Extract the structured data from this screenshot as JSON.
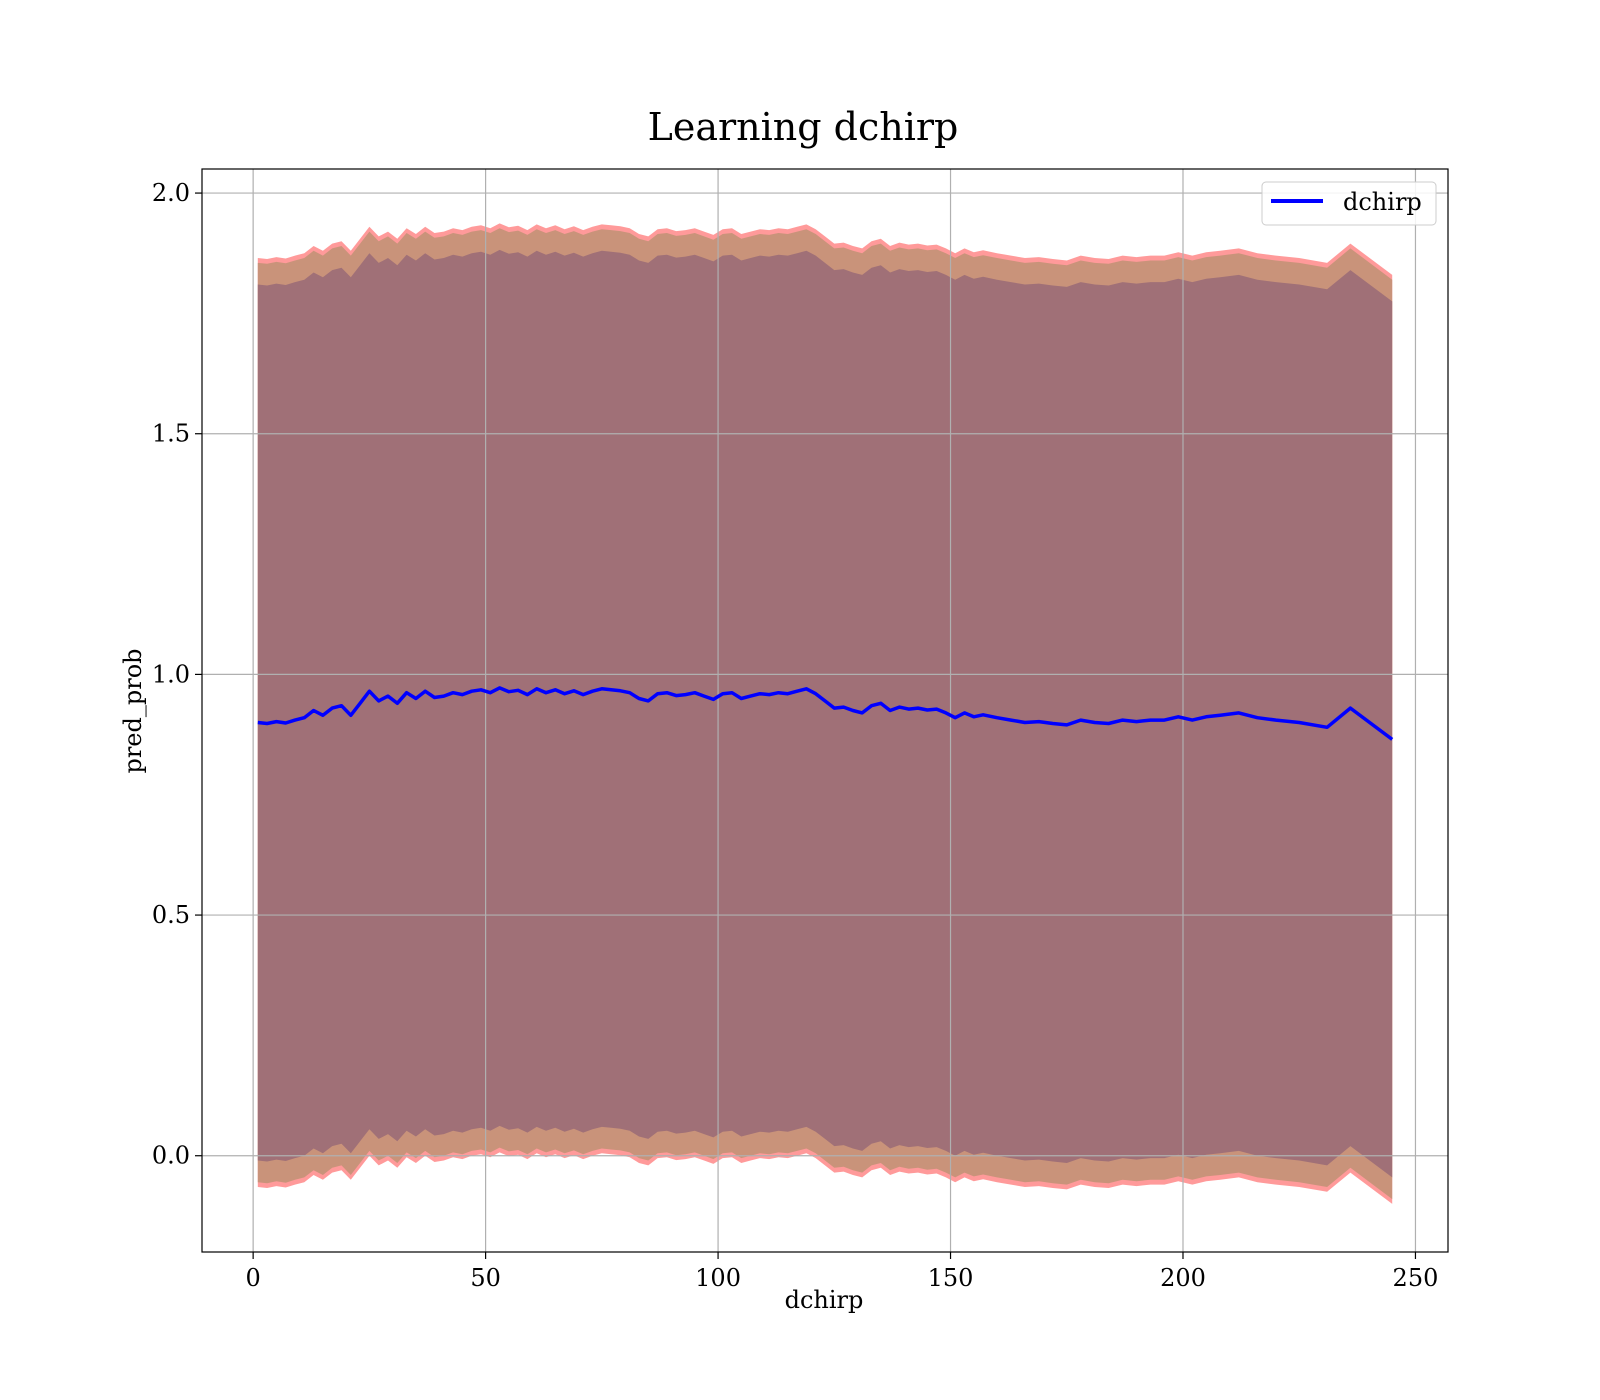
{
  "chart_data": {
    "type": "line",
    "title": "Learning dchirp",
    "xlabel": "dchirp",
    "ylabel": "pred_prob",
    "xlim": [
      -11,
      257
    ],
    "ylim": [
      -0.2,
      2.05
    ],
    "xticks": [
      0,
      50,
      100,
      150,
      200,
      250
    ],
    "xtick_labels": [
      "0",
      "50",
      "100",
      "150",
      "200",
      "250"
    ],
    "yticks": [
      0.0,
      0.5,
      1.0,
      1.5,
      2.0
    ],
    "ytick_labels": [
      "0.0",
      "0.5",
      "1.0",
      "1.5",
      "2.0"
    ],
    "grid": true,
    "legend": {
      "placement": "top-right",
      "entries": [
        "dchirp"
      ]
    },
    "colors": {
      "line": "#0000ff",
      "band_outer": "#ff9a9a",
      "band_middle": "#c9937a",
      "band_inner": "#a07077",
      "grid": "#b0b0b0"
    },
    "series": [
      {
        "name": "dchirp",
        "x": [
          1,
          3,
          5,
          7,
          9,
          11,
          13,
          15,
          17,
          19,
          21,
          23,
          25,
          27,
          29,
          31,
          33,
          35,
          37,
          39,
          41,
          43,
          45,
          47,
          49,
          51,
          53,
          55,
          57,
          59,
          61,
          63,
          65,
          67,
          69,
          71,
          73,
          75,
          77,
          79,
          81,
          83,
          85,
          87,
          89,
          91,
          93,
          95,
          97,
          99,
          101,
          103,
          105,
          107,
          109,
          111,
          113,
          115,
          117,
          119,
          121,
          123,
          125,
          127,
          129,
          131,
          133,
          135,
          137,
          139,
          141,
          143,
          145,
          147,
          149,
          151,
          153,
          155,
          157,
          160,
          163,
          166,
          169,
          172,
          175,
          178,
          181,
          184,
          187,
          190,
          193,
          196,
          199,
          202,
          205,
          208,
          212,
          216,
          220,
          225,
          231,
          236,
          245
        ],
        "mean": [
          0.9,
          0.898,
          0.902,
          0.899,
          0.905,
          0.91,
          0.925,
          0.915,
          0.93,
          0.935,
          0.915,
          0.94,
          0.965,
          0.945,
          0.955,
          0.94,
          0.962,
          0.95,
          0.965,
          0.952,
          0.955,
          0.962,
          0.958,
          0.965,
          0.968,
          0.962,
          0.972,
          0.964,
          0.967,
          0.958,
          0.97,
          0.962,
          0.968,
          0.96,
          0.966,
          0.958,
          0.965,
          0.97,
          0.968,
          0.966,
          0.962,
          0.95,
          0.945,
          0.96,
          0.962,
          0.956,
          0.958,
          0.962,
          0.955,
          0.948,
          0.96,
          0.962,
          0.95,
          0.955,
          0.96,
          0.958,
          0.962,
          0.96,
          0.965,
          0.97,
          0.96,
          0.945,
          0.93,
          0.932,
          0.925,
          0.92,
          0.935,
          0.94,
          0.925,
          0.932,
          0.928,
          0.93,
          0.926,
          0.928,
          0.92,
          0.91,
          0.92,
          0.912,
          0.916,
          0.91,
          0.905,
          0.9,
          0.902,
          0.898,
          0.895,
          0.905,
          0.9,
          0.898,
          0.905,
          0.902,
          0.905,
          0.905,
          0.912,
          0.905,
          0.912,
          0.915,
          0.92,
          0.91,
          0.905,
          0.9,
          0.89,
          0.93,
          0.865
        ],
        "band_outer_halfwidth": 0.965,
        "band_middle_halfwidth": 0.955,
        "band_inner_halfwidth": 0.91
      }
    ]
  }
}
